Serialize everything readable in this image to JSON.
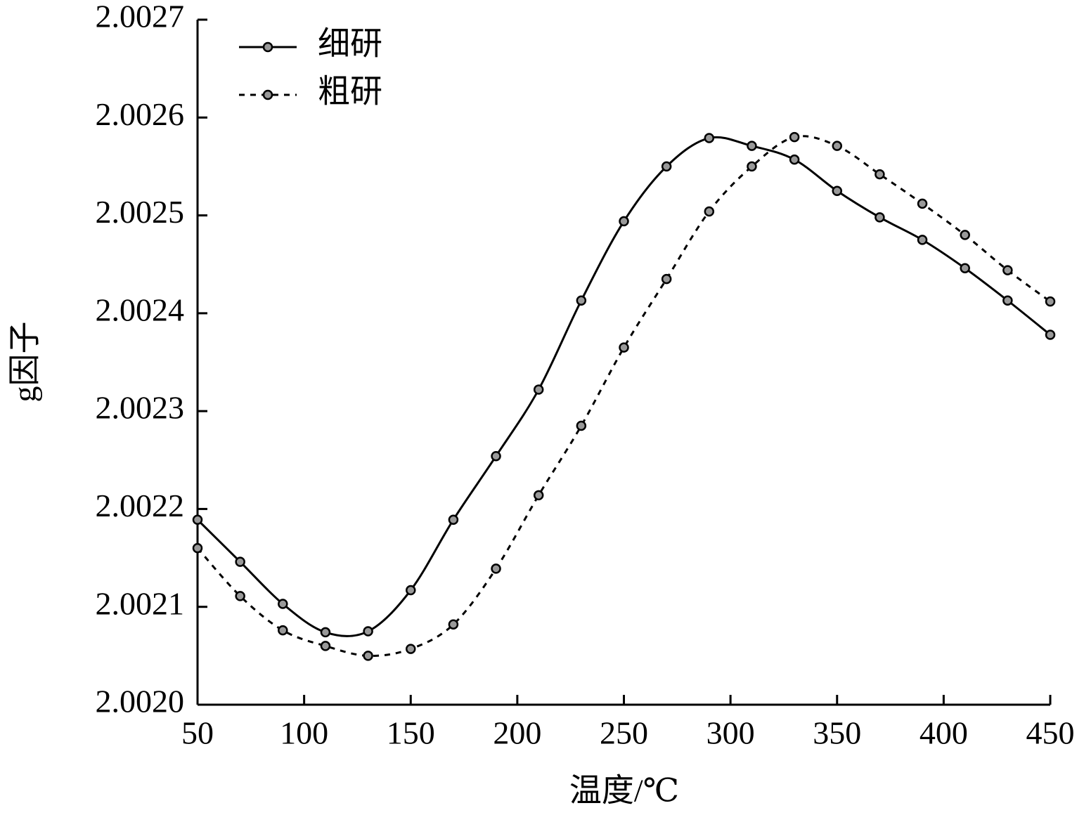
{
  "chart_data": {
    "type": "line",
    "x_label": "温度/℃",
    "y_label": "g因子",
    "x": [
      50,
      70,
      90,
      110,
      130,
      150,
      170,
      190,
      210,
      230,
      250,
      270,
      290,
      310,
      330,
      350,
      370,
      390,
      410,
      430,
      450
    ],
    "series": [
      {
        "name": "细研",
        "color": "#000000",
        "linestyle": "solid",
        "values": [
          2.002189,
          2.002146,
          2.002103,
          2.002074,
          2.002075,
          2.002117,
          2.002189,
          2.002254,
          2.002322,
          2.002413,
          2.002494,
          2.00255,
          2.002579,
          2.002571,
          2.002557,
          2.002525,
          2.002498,
          2.002475,
          2.002446,
          2.002413,
          2.002378
        ]
      },
      {
        "name": "粗研",
        "color": "#000000",
        "linestyle": "dashed",
        "values": [
          2.00216,
          2.002111,
          2.002076,
          2.00206,
          2.00205,
          2.002057,
          2.002082,
          2.002139,
          2.002214,
          2.002285,
          2.002365,
          2.002435,
          2.002504,
          2.00255,
          2.00258,
          2.002571,
          2.002542,
          2.002512,
          2.00248,
          2.002444,
          2.002412
        ]
      }
    ],
    "xlim": [
      50,
      450
    ],
    "xticks": [
      50,
      100,
      150,
      200,
      250,
      300,
      350,
      400,
      450
    ],
    "ylim": [
      2.002,
      2.0027
    ],
    "yticks": [
      {
        "value": 2.002,
        "label": "2.0020"
      },
      2.0021,
      2.0022,
      2.0023,
      2.0024,
      2.0025,
      2.0026,
      2.0027
    ],
    "legend": "upper left",
    "grid": false
  }
}
